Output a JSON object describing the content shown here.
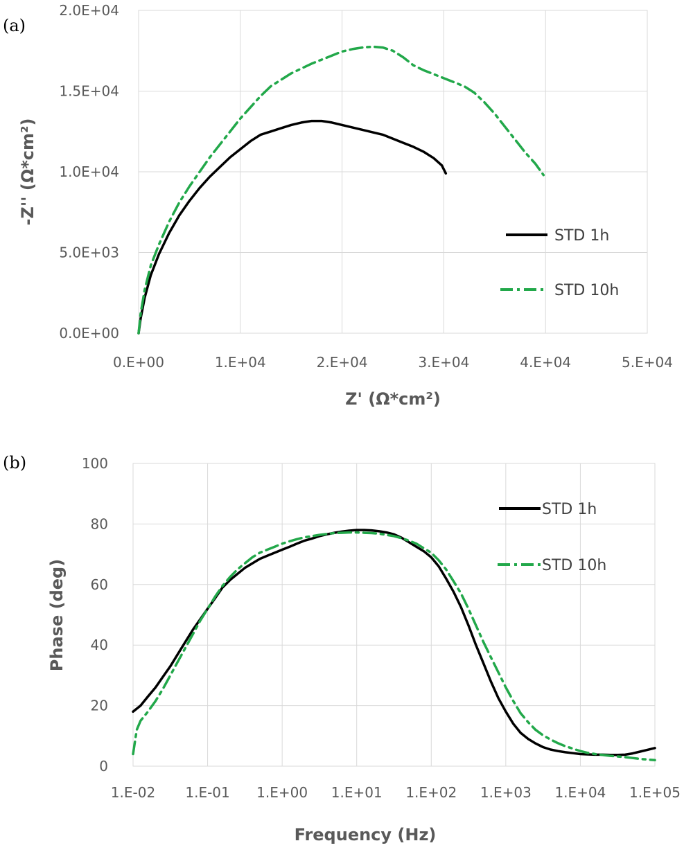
{
  "chart_data": [
    {
      "type": "line",
      "panel_label": "(a)",
      "xlabel": "Z' (Ω*cm²)",
      "ylabel": "-Z'' (Ω*cm²)",
      "xlim": [
        0,
        50000
      ],
      "ylim": [
        0,
        20000
      ],
      "x_ticks": [
        "0.E+00",
        "1.E+04",
        "2.E+04",
        "3.E+04",
        "4.E+04",
        "5.E+04"
      ],
      "y_ticks": [
        "0.0E+00",
        "5.0E+03",
        "1.0E+04",
        "1.5E+04",
        "2.0E+04"
      ],
      "x_tick_values": [
        0,
        10000,
        20000,
        30000,
        40000,
        50000
      ],
      "y_tick_values": [
        0,
        5000,
        10000,
        15000,
        20000
      ],
      "legend_position": "right",
      "series": [
        {
          "name": "STD 1h",
          "color": "#000000",
          "style": "solid",
          "points": [
            [
              0,
              0
            ],
            [
              200,
              900
            ],
            [
              600,
              2200
            ],
            [
              1200,
              3600
            ],
            [
              2000,
              4900
            ],
            [
              3000,
              6200
            ],
            [
              4000,
              7300
            ],
            [
              5000,
              8200
            ],
            [
              6000,
              9000
            ],
            [
              7000,
              9700
            ],
            [
              8000,
              10300
            ],
            [
              9000,
              10900
            ],
            [
              10000,
              11400
            ],
            [
              11000,
              11900
            ],
            [
              12000,
              12300
            ],
            [
              13000,
              12500
            ],
            [
              14000,
              12700
            ],
            [
              15000,
              12900
            ],
            [
              16000,
              13050
            ],
            [
              17000,
              13150
            ],
            [
              18000,
              13150
            ],
            [
              19000,
              13050
            ],
            [
              20000,
              12900
            ],
            [
              21000,
              12750
            ],
            [
              22000,
              12600
            ],
            [
              23000,
              12450
            ],
            [
              24000,
              12300
            ],
            [
              25000,
              12050
            ],
            [
              26000,
              11800
            ],
            [
              27000,
              11550
            ],
            [
              28000,
              11250
            ],
            [
              29000,
              10850
            ],
            [
              29800,
              10400
            ],
            [
              30200,
              9900
            ]
          ]
        },
        {
          "name": "STD 10h",
          "color": "#22a84a",
          "style": "dashdot",
          "points": [
            [
              0,
              0
            ],
            [
              200,
              1200
            ],
            [
              600,
              2700
            ],
            [
              1200,
              4200
            ],
            [
              2000,
              5500
            ],
            [
              3000,
              6900
            ],
            [
              4000,
              8100
            ],
            [
              5000,
              9100
            ],
            [
              6000,
              10000
            ],
            [
              7000,
              10900
            ],
            [
              8000,
              11700
            ],
            [
              9000,
              12500
            ],
            [
              10000,
              13300
            ],
            [
              11000,
              14000
            ],
            [
              12000,
              14700
            ],
            [
              13000,
              15300
            ],
            [
              14000,
              15700
            ],
            [
              15000,
              16100
            ],
            [
              16000,
              16400
            ],
            [
              17000,
              16700
            ],
            [
              18000,
              16950
            ],
            [
              19000,
              17200
            ],
            [
              20000,
              17450
            ],
            [
              21000,
              17600
            ],
            [
              22000,
              17700
            ],
            [
              23000,
              17750
            ],
            [
              24000,
              17700
            ],
            [
              25000,
              17500
            ],
            [
              26000,
              17100
            ],
            [
              27000,
              16600
            ],
            [
              28000,
              16300
            ],
            [
              29000,
              16050
            ],
            [
              30000,
              15800
            ],
            [
              31000,
              15550
            ],
            [
              32000,
              15300
            ],
            [
              33000,
              14900
            ],
            [
              34000,
              14300
            ],
            [
              35000,
              13600
            ],
            [
              36000,
              12800
            ],
            [
              37000,
              12000
            ],
            [
              38000,
              11200
            ],
            [
              39000,
              10500
            ],
            [
              39800,
              9800
            ]
          ]
        }
      ]
    },
    {
      "type": "line",
      "panel_label": "(b)",
      "xlabel": "Frequency (Hz)",
      "ylabel": "Phase (deg)",
      "x_scale": "log",
      "xlim": [
        0.01,
        100000
      ],
      "ylim": [
        0,
        100
      ],
      "x_ticks": [
        "1.E-02",
        "1.E-01",
        "1.E+00",
        "1.E+01",
        "1.E+02",
        "1.E+03",
        "1.E+04",
        "1.E+05"
      ],
      "y_ticks": [
        "0",
        "20",
        "40",
        "60",
        "80",
        "100"
      ],
      "x_tick_values": [
        0.01,
        0.1,
        1,
        10,
        100,
        1000,
        10000,
        100000
      ],
      "y_tick_values": [
        0,
        20,
        40,
        60,
        80,
        100
      ],
      "legend_position": "top-right",
      "series": [
        {
          "name": "STD 1h",
          "color": "#000000",
          "style": "solid",
          "points": [
            [
              0.01,
              18
            ],
            [
              0.0126,
              20
            ],
            [
              0.0158,
              23
            ],
            [
              0.02,
              26
            ],
            [
              0.0251,
              29.5
            ],
            [
              0.0316,
              33
            ],
            [
              0.0398,
              37
            ],
            [
              0.0501,
              41
            ],
            [
              0.0631,
              45
            ],
            [
              0.0794,
              48.5
            ],
            [
              0.1,
              52
            ],
            [
              0.126,
              55.5
            ],
            [
              0.158,
              59
            ],
            [
              0.2,
              61.5
            ],
            [
              0.251,
              63.5
            ],
            [
              0.316,
              65.5
            ],
            [
              0.398,
              67
            ],
            [
              0.501,
              68.5
            ],
            [
              0.631,
              69.5
            ],
            [
              0.794,
              70.5
            ],
            [
              1,
              71.5
            ],
            [
              1.26,
              72.5
            ],
            [
              1.58,
              73.5
            ],
            [
              2,
              74.5
            ],
            [
              2.51,
              75.2
            ],
            [
              3.16,
              76
            ],
            [
              3.98,
              76.6
            ],
            [
              5.01,
              77.1
            ],
            [
              6.31,
              77.5
            ],
            [
              7.94,
              77.8
            ],
            [
              10,
              78
            ],
            [
              12.6,
              78
            ],
            [
              15.8,
              77.9
            ],
            [
              20,
              77.6
            ],
            [
              25.1,
              77.2
            ],
            [
              31.6,
              76.6
            ],
            [
              39.8,
              75.5
            ],
            [
              50.1,
              74
            ],
            [
              63.1,
              72.5
            ],
            [
              79.4,
              71
            ],
            [
              100,
              69
            ],
            [
              126,
              66
            ],
            [
              158,
              62
            ],
            [
              200,
              57.5
            ],
            [
              251,
              52.5
            ],
            [
              316,
              46.5
            ],
            [
              398,
              40
            ],
            [
              501,
              34
            ],
            [
              631,
              28
            ],
            [
              794,
              22.5
            ],
            [
              1000,
              18
            ],
            [
              1260,
              14
            ],
            [
              1580,
              11
            ],
            [
              2000,
              9
            ],
            [
              2510,
              7.5
            ],
            [
              3160,
              6.3
            ],
            [
              3980,
              5.5
            ],
            [
              5010,
              5
            ],
            [
              6310,
              4.6
            ],
            [
              7940,
              4.3
            ],
            [
              10000,
              4
            ],
            [
              12600,
              3.9
            ],
            [
              15800,
              3.8
            ],
            [
              20000,
              3.8
            ],
            [
              25100,
              3.7
            ],
            [
              31600,
              3.7
            ],
            [
              39800,
              3.8
            ],
            [
              50100,
              4.2
            ],
            [
              63100,
              4.8
            ],
            [
              79400,
              5.4
            ],
            [
              100000,
              6
            ]
          ]
        },
        {
          "name": "STD 10h",
          "color": "#22a84a",
          "style": "dashdot",
          "points": [
            [
              0.01,
              4
            ],
            [
              0.0112,
              12
            ],
            [
              0.0126,
              15
            ],
            [
              0.0158,
              18
            ],
            [
              0.02,
              21.5
            ],
            [
              0.0251,
              25.5
            ],
            [
              0.0316,
              30
            ],
            [
              0.0398,
              34.5
            ],
            [
              0.0501,
              39
            ],
            [
              0.0631,
              43.5
            ],
            [
              0.0794,
              48
            ],
            [
              0.1,
              52
            ],
            [
              0.126,
              56
            ],
            [
              0.158,
              59.5
            ],
            [
              0.2,
              62.5
            ],
            [
              0.251,
              65
            ],
            [
              0.316,
              67
            ],
            [
              0.398,
              69
            ],
            [
              0.501,
              70.5
            ],
            [
              0.631,
              71.5
            ],
            [
              0.794,
              72.5
            ],
            [
              1,
              73.5
            ],
            [
              1.26,
              74.3
            ],
            [
              1.58,
              75
            ],
            [
              2,
              75.6
            ],
            [
              2.51,
              76
            ],
            [
              3.16,
              76.4
            ],
            [
              3.98,
              76.7
            ],
            [
              5.01,
              77
            ],
            [
              6.31,
              77.1
            ],
            [
              7.94,
              77.2
            ],
            [
              10,
              77.2
            ],
            [
              12.6,
              77.1
            ],
            [
              15.8,
              77
            ],
            [
              20,
              76.8
            ],
            [
              25.1,
              76.4
            ],
            [
              31.6,
              76
            ],
            [
              39.8,
              75.3
            ],
            [
              50.1,
              74.5
            ],
            [
              63.1,
              73.5
            ],
            [
              79.4,
              72
            ],
            [
              100,
              70.5
            ],
            [
              126,
              68
            ],
            [
              158,
              65
            ],
            [
              200,
              61
            ],
            [
              251,
              57
            ],
            [
              316,
              52
            ],
            [
              398,
              46.5
            ],
            [
              501,
              41
            ],
            [
              631,
              36
            ],
            [
              794,
              31
            ],
            [
              1000,
              26
            ],
            [
              1260,
              21.5
            ],
            [
              1580,
              17.5
            ],
            [
              2000,
              14.5
            ],
            [
              2510,
              12
            ],
            [
              3160,
              10.2
            ],
            [
              3980,
              8.8
            ],
            [
              5010,
              7.6
            ],
            [
              6310,
              6.6
            ],
            [
              7940,
              5.8
            ],
            [
              10000,
              5
            ],
            [
              12600,
              4.4
            ],
            [
              15800,
              4
            ],
            [
              20000,
              3.7
            ],
            [
              25100,
              3.4
            ],
            [
              31600,
              3.2
            ],
            [
              39800,
              3
            ],
            [
              50100,
              2.7
            ],
            [
              63100,
              2.4
            ],
            [
              79400,
              2.2
            ],
            [
              100000,
              2
            ]
          ]
        }
      ]
    }
  ]
}
